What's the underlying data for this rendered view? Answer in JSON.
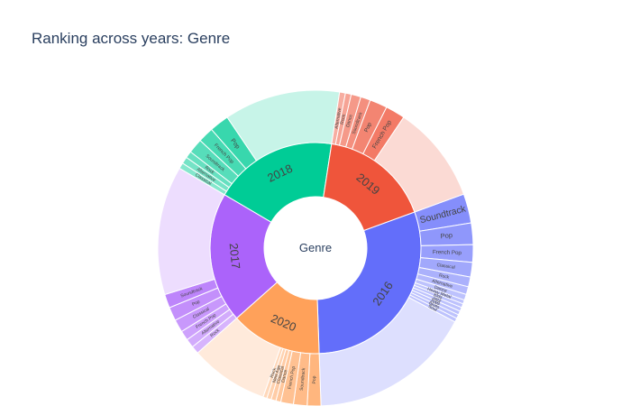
{
  "chart_data": {
    "type": "sunburst",
    "title": "Ranking across years: Genre",
    "root_label": "Genre",
    "colors": {
      "2016": "#636efa",
      "2017": "#ab63fa",
      "2018": "#00cc96",
      "2019": "#ef553b",
      "2020": "#ffa15a"
    },
    "years": [
      {
        "label": "2016",
        "value": 30,
        "children": [
          {
            "label": "Soundtrack",
            "value": 3.0
          },
          {
            "label": "Pop",
            "value": 2.2
          },
          {
            "label": "French Pop",
            "value": 1.8
          },
          {
            "label": "Classical",
            "value": 1.5
          },
          {
            "label": "Rock",
            "value": 1.0
          },
          {
            "label": "Alternative",
            "value": 0.8
          },
          {
            "label": "Dance",
            "value": 0.6
          },
          {
            "label": "Heavy Metal",
            "value": 0.4
          },
          {
            "label": "Kids",
            "value": 0.4
          },
          {
            "label": "Jazz",
            "value": 0.4
          },
          {
            "label": "R&B",
            "value": 0.4
          },
          {
            "label": "Blues",
            "value": 0.4
          },
          {
            "label": "Soul",
            "value": 0.4
          },
          {
            "label": "",
            "value": 16.7
          }
        ]
      },
      {
        "label": "2020",
        "value": 14,
        "children": [
          {
            "label": "Pop",
            "value": 1.4
          },
          {
            "label": "Soundtrack",
            "value": 1.4
          },
          {
            "label": "French Pop",
            "value": 1.3
          },
          {
            "label": "Dance",
            "value": 0.5
          },
          {
            "label": "Classical",
            "value": 0.5
          },
          {
            "label": "New Age",
            "value": 0.45
          },
          {
            "label": "Rock",
            "value": 0.4
          },
          {
            "label": "",
            "value": 8.05
          }
        ]
      },
      {
        "label": "2017",
        "value": 20,
        "children": [
          {
            "label": "Rock",
            "value": 0.8
          },
          {
            "label": "Alternative",
            "value": 0.9
          },
          {
            "label": "French Pop",
            "value": 1.0
          },
          {
            "label": "Classical",
            "value": 1.3
          },
          {
            "label": "Pop",
            "value": 1.4
          },
          {
            "label": "Soundtrack",
            "value": 1.4
          },
          {
            "label": "",
            "value": 13.2
          }
        ]
      },
      {
        "label": "2018",
        "value": 19,
        "children": [
          {
            "label": "Classical",
            "value": 0.6
          },
          {
            "label": "Alternative",
            "value": 0.7
          },
          {
            "label": "Rock",
            "value": 0.7
          },
          {
            "label": "Soundtrack",
            "value": 1.5
          },
          {
            "label": "French Pop",
            "value": 1.6
          },
          {
            "label": "Pop",
            "value": 2.0
          },
          {
            "label": "",
            "value": 11.9
          }
        ]
      },
      {
        "label": "2019",
        "value": 17,
        "children": [
          {
            "label": "Alternative",
            "value": 0.6
          },
          {
            "label": "Rock",
            "value": 0.6
          },
          {
            "label": "Dance",
            "value": 1.0
          },
          {
            "label": "Soundtrack",
            "value": 1.0
          },
          {
            "label": "Pop",
            "value": 1.8
          },
          {
            "label": "French Pop",
            "value": 2.0
          },
          {
            "label": "",
            "value": 10.0
          }
        ]
      }
    ]
  }
}
